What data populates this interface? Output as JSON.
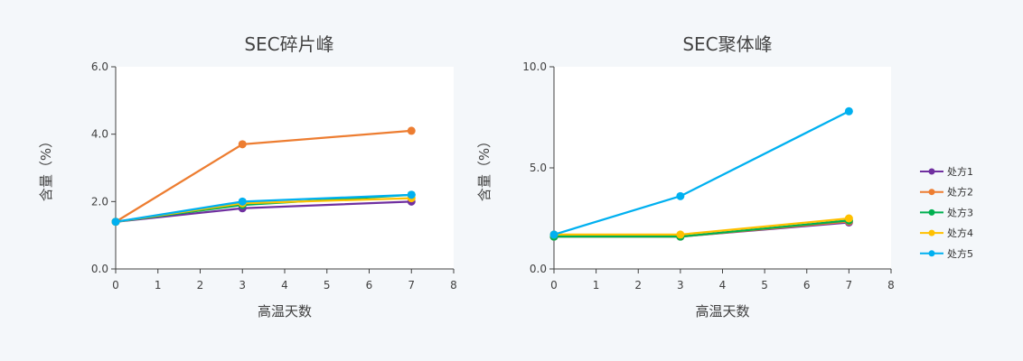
{
  "chart_data": [
    {
      "type": "line",
      "title": "SEC碎片峰",
      "xlabel": "高温天数",
      "ylabel": "含量（%）",
      "xlim": [
        0,
        8
      ],
      "ylim": [
        0,
        6
      ],
      "xticks": [
        "0",
        "1",
        "2",
        "3",
        "4",
        "5",
        "6",
        "7",
        "8"
      ],
      "yticks": [
        "0.0",
        "2.0",
        "4.0",
        "6.0"
      ],
      "x": [
        0,
        3,
        7
      ],
      "series": [
        {
          "name": "处方1",
          "values": [
            1.4,
            1.8,
            2.0
          ],
          "color": "#7030a0"
        },
        {
          "name": "处方2",
          "values": [
            1.4,
            3.7,
            4.1
          ],
          "color": "#ed7d31"
        },
        {
          "name": "处方3",
          "values": [
            1.4,
            1.9,
            2.2
          ],
          "color": "#00b050"
        },
        {
          "name": "处方4",
          "values": [
            1.4,
            1.95,
            2.1
          ],
          "color": "#ffc000"
        },
        {
          "name": "处方5",
          "values": [
            1.4,
            2.0,
            2.2
          ],
          "color": "#00b0f0"
        }
      ]
    },
    {
      "type": "line",
      "title": "SEC聚体峰",
      "xlabel": "高温天数",
      "ylabel": "含量（%）",
      "xlim": [
        0,
        8
      ],
      "ylim": [
        0,
        10
      ],
      "xticks": [
        "0",
        "1",
        "2",
        "3",
        "4",
        "5",
        "6",
        "7",
        "8"
      ],
      "yticks": [
        "0.0",
        "5.0",
        "10.0"
      ],
      "x": [
        0,
        3,
        7
      ],
      "legend": "right",
      "series": [
        {
          "name": "处方1",
          "values": [
            1.6,
            1.6,
            2.3
          ],
          "color": "#7030a0"
        },
        {
          "name": "处方2",
          "values": [
            1.6,
            1.6,
            2.35
          ],
          "color": "#ed7d31"
        },
        {
          "name": "处方3",
          "values": [
            1.6,
            1.6,
            2.4
          ],
          "color": "#00b050"
        },
        {
          "name": "处方4",
          "values": [
            1.7,
            1.7,
            2.5
          ],
          "color": "#ffc000"
        },
        {
          "name": "处方5",
          "values": [
            1.7,
            3.6,
            7.8
          ],
          "color": "#00b0f0"
        }
      ]
    }
  ]
}
